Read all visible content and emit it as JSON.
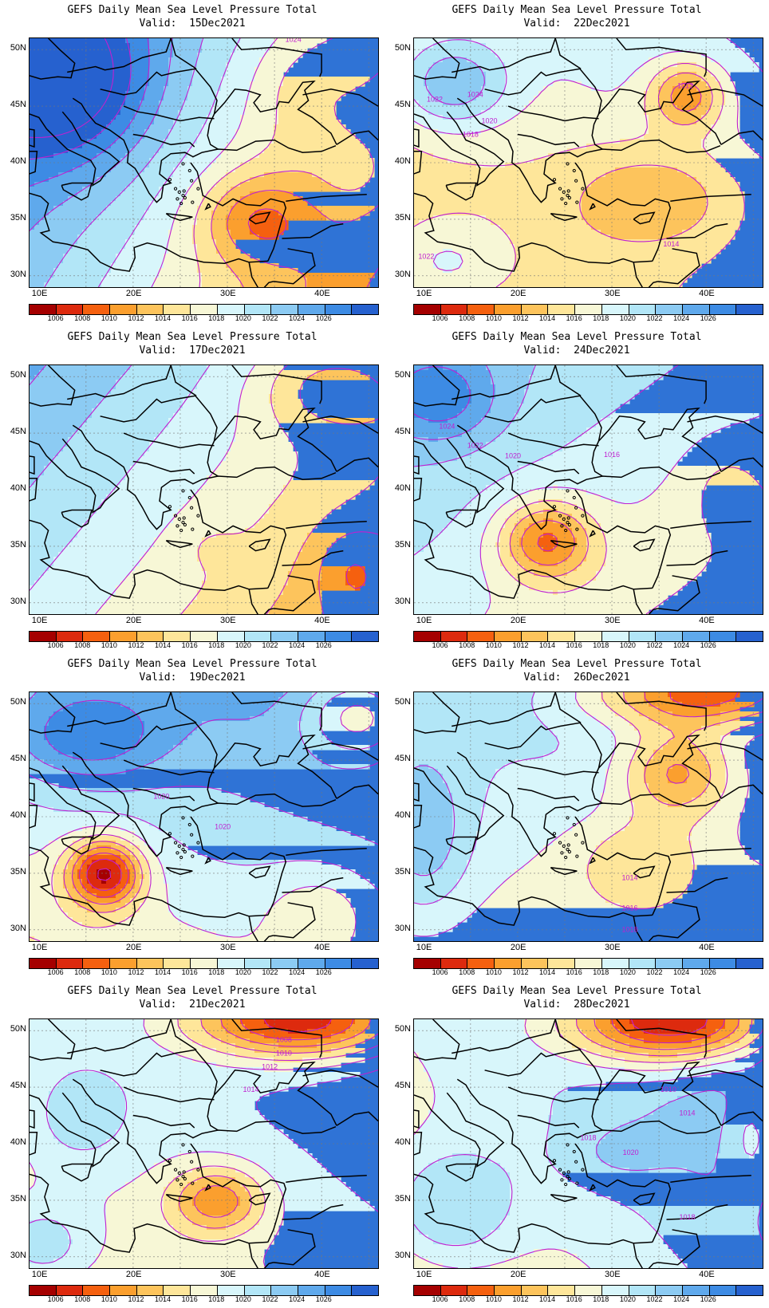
{
  "panels": [
    {
      "title": "GEFS Daily Mean Sea Level Pressure Total",
      "valid": "Valid:  15Dec2021",
      "contour_labels": [
        "1024"
      ],
      "scene": "hi_nw_lo_east"
    },
    {
      "title": "GEFS Daily Mean Sea Level Pressure Total",
      "valid": "Valid:  22Dec2021",
      "contour_labels": [
        "1012",
        "1022",
        "1024",
        "1020",
        "1018",
        "1014",
        "1022"
      ],
      "scene": "lo_east_wide"
    },
    {
      "title": "GEFS Daily Mean Sea Level Pressure Total",
      "valid": "Valid:  17Dec2021",
      "contour_labels": [],
      "scene": "flat"
    },
    {
      "title": "GEFS Daily Mean Sea Level Pressure Total",
      "valid": "Valid:  24Dec2021",
      "contour_labels": [
        "1024",
        "1022",
        "1020",
        "1016"
      ],
      "scene": "lo_crete"
    },
    {
      "title": "GEFS Daily Mean Sea Level Pressure Total",
      "valid": "Valid:  19Dec2021",
      "contour_labels": [
        "1020",
        "1020"
      ],
      "scene": "lo_west"
    },
    {
      "title": "GEFS Daily Mean Sea Level Pressure Total",
      "valid": "Valid:  26Dec2021",
      "contour_labels": [
        "1014",
        "1016",
        "1018"
      ],
      "scene": "lo_ne"
    },
    {
      "title": "GEFS Daily Mean Sea Level Pressure Total",
      "valid": "Valid:  21Dec2021",
      "contour_labels": [
        "1008",
        "1010",
        "1012",
        "1014"
      ],
      "scene": "lo_north_cyprus"
    },
    {
      "title": "GEFS Daily Mean Sea Level Pressure Total",
      "valid": "Valid:  28Dec2021",
      "contour_labels": [
        "1010",
        "1014",
        "1018",
        "1020",
        "1018"
      ],
      "scene": "lo_north_deep"
    }
  ],
  "axes": {
    "lat_labels": [
      "50N",
      "45N",
      "40N",
      "35N",
      "30N"
    ],
    "lon_labels": [
      "10E",
      "20E",
      "30E",
      "40E"
    ]
  },
  "colorbar": {
    "labels": [
      "1006",
      "1008",
      "1010",
      "1012",
      "1014",
      "1016",
      "1018",
      "1020",
      "1022",
      "1024",
      "1026"
    ],
    "colors": [
      "#a50000",
      "#dd2a0e",
      "#f5600f",
      "#fb9f2e",
      "#fdc45c",
      "#fee69a",
      "#f7f7d6",
      "#d8f6fb",
      "#b2e6f7",
      "#8ccbf3",
      "#5fa9ec",
      "#3d8be4",
      "#2661cf"
    ]
  },
  "styles": {
    "isobar_color": "#c020d0",
    "coast_color": "#000000"
  }
}
